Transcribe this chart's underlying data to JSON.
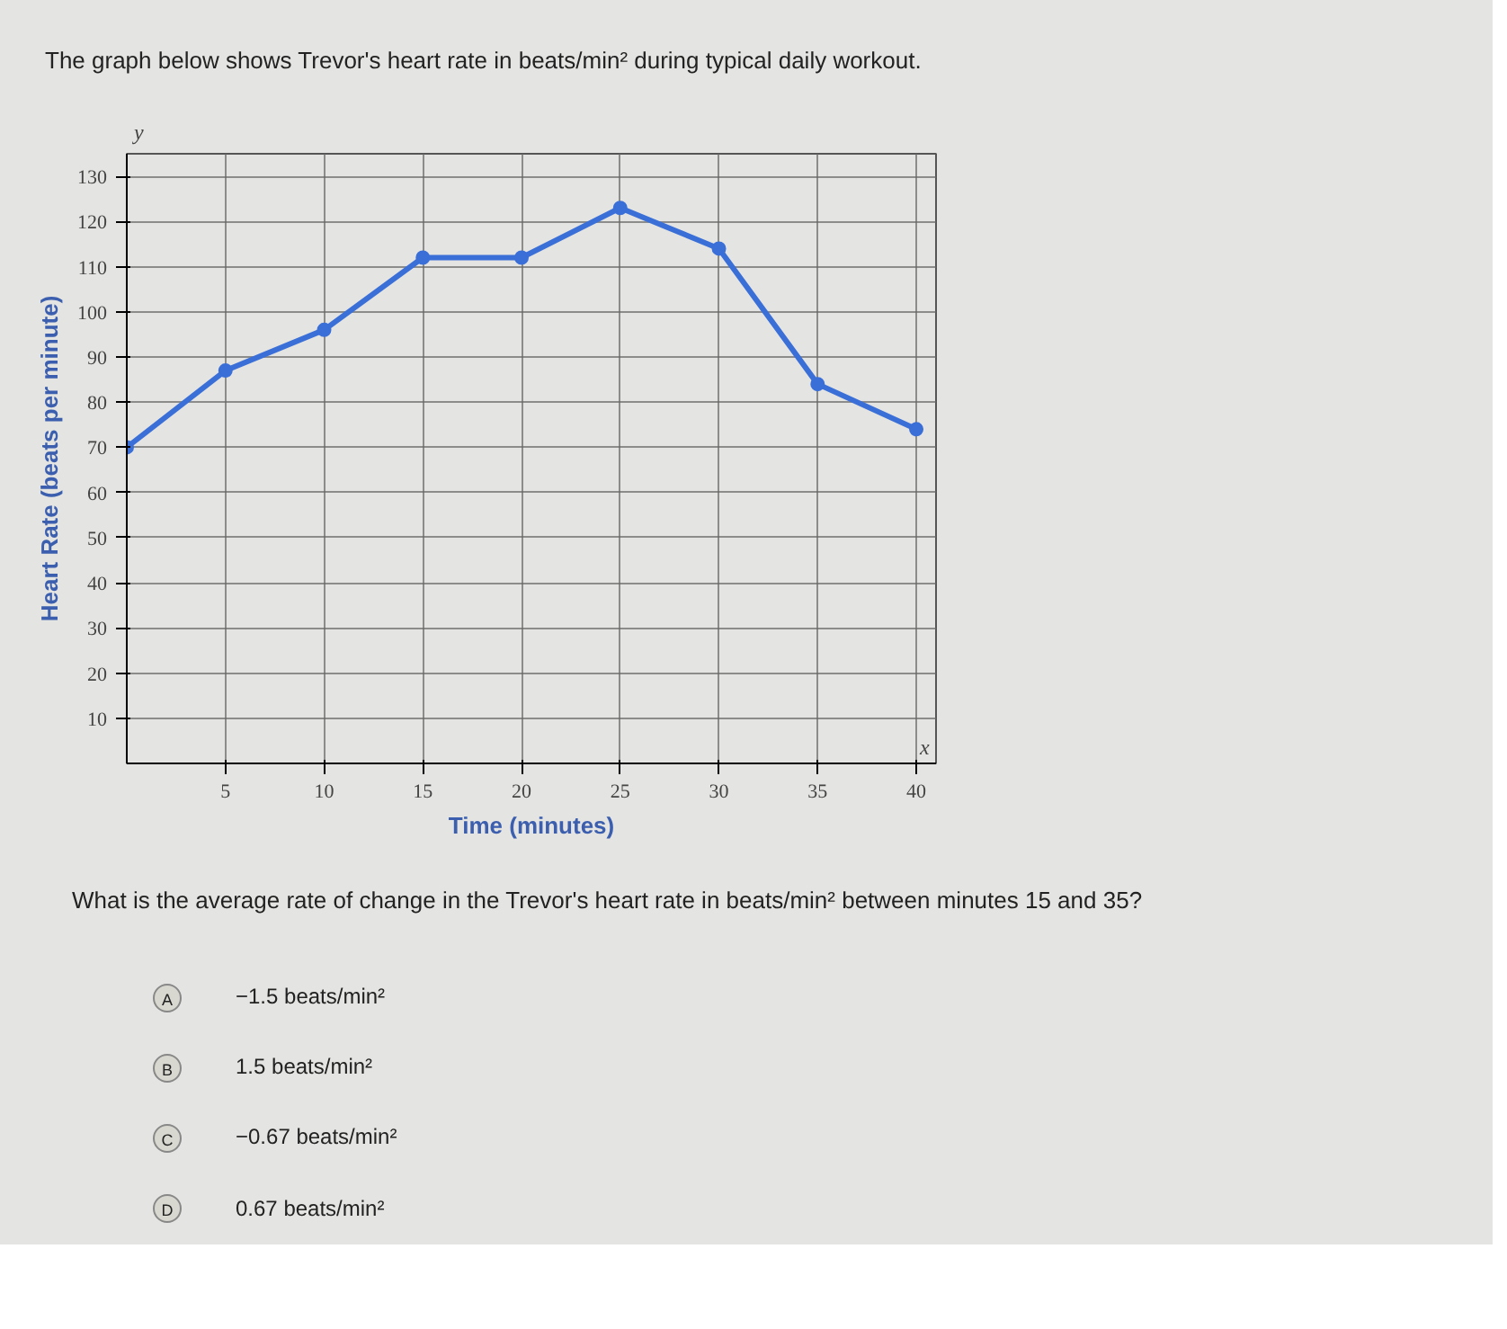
{
  "chart_data": {
    "type": "line",
    "title": "The graph below shows Trevor's heart rate in beats/min² during typical daily workout.",
    "xlabel": "Time (minutes)",
    "ylabel": "Heart Rate (beats per minute)",
    "x": [
      0,
      5,
      10,
      15,
      20,
      25,
      30,
      35,
      40
    ],
    "series": [
      {
        "color": "#3a6fd8",
        "values": [
          70,
          87,
          96,
          112,
          112,
          123,
          114,
          84,
          74
        ]
      }
    ],
    "xlim": [
      0,
      41
    ],
    "ylim": [
      0,
      135
    ],
    "xticks": [
      5,
      10,
      15,
      20,
      25,
      30,
      35,
      40
    ],
    "yticks": [
      10,
      20,
      30,
      40,
      50,
      60,
      70,
      80,
      90,
      100,
      110,
      120,
      130
    ],
    "grid": true,
    "marker": "circle",
    "line_style": "solid",
    "annotations": [
      "y",
      "x",
      "What is the average rate of change in the Trevor's heart rate in beats/min² between minutes 15 and 35?",
      "A",
      "−1.5 beats/min²",
      "B",
      "1.5 beats/min²",
      "C",
      "−0.67 beats/min²",
      "D",
      "0.67 beats/min²"
    ]
  }
}
